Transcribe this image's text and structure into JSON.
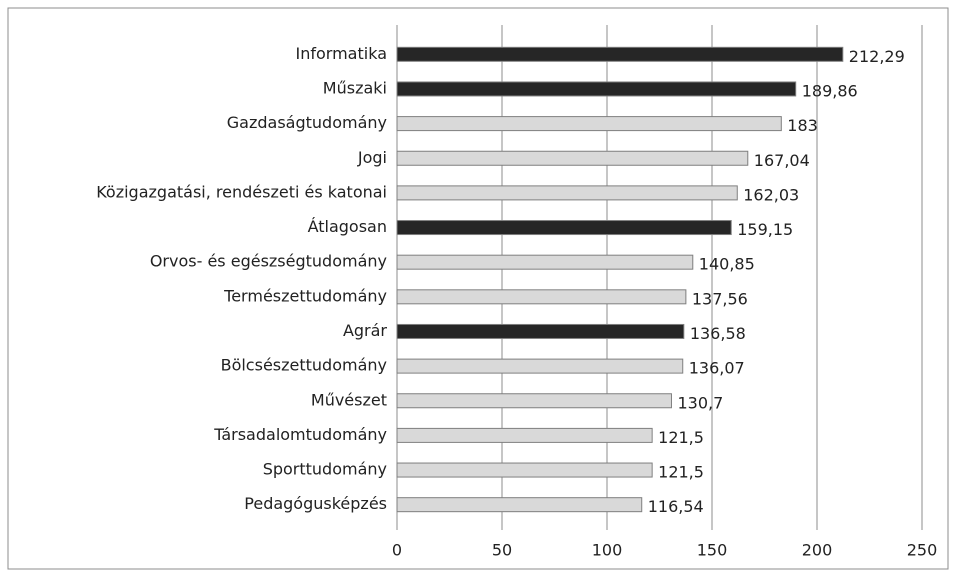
{
  "chart_data": {
    "type": "bar",
    "orientation": "horizontal",
    "categories": [
      "Informatika",
      "Műszaki",
      "Gazdaságtudomány",
      "Jogi",
      "Közigazgatási, rendészeti és katonai",
      "Átlagosan",
      "Orvos- és egészségtudomány",
      "Természettudomány",
      "Agrár",
      "Bölcsészettudomány",
      "Művészet",
      "Társadalomtudomány",
      "Sporttudomány",
      "Pedagógusképzés"
    ],
    "values": [
      212.29,
      189.86,
      183,
      167.04,
      162.03,
      159.15,
      140.85,
      137.56,
      136.58,
      136.07,
      130.7,
      121.5,
      121.5,
      116.54
    ],
    "value_labels": [
      "212,29",
      "189,86",
      "183",
      "167,04",
      "162,03",
      "159,15",
      "140,85",
      "137,56",
      "136,58",
      "136,07",
      "130,7",
      "121,5",
      "121,5",
      "116,54"
    ],
    "colors": [
      "#262626",
      "#262626",
      "#d9d9d9",
      "#d9d9d9",
      "#d9d9d9",
      "#262626",
      "#d9d9d9",
      "#d9d9d9",
      "#262626",
      "#d9d9d9",
      "#d9d9d9",
      "#d9d9d9",
      "#d9d9d9",
      "#d9d9d9"
    ],
    "xlim": [
      0,
      250
    ],
    "xticks": [
      0,
      50,
      100,
      150,
      200,
      250
    ],
    "grid": true
  }
}
